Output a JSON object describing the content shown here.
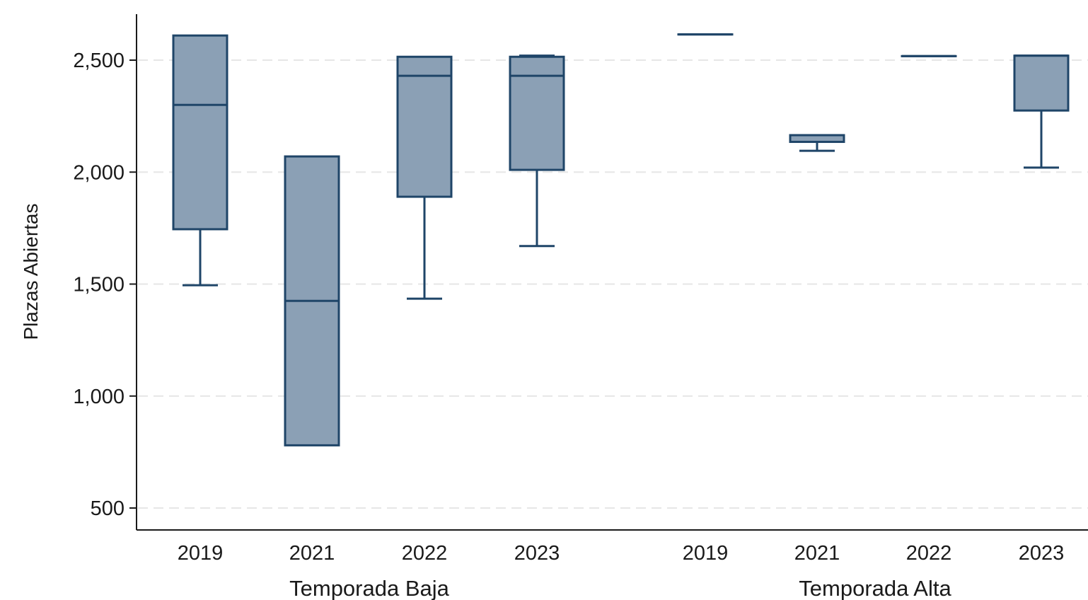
{
  "chart_data": {
    "type": "box",
    "ylabel": "Plazas Abiertas",
    "ylim": [
      420,
      2700
    ],
    "yticks": [
      500,
      1000,
      1500,
      2000,
      2500
    ],
    "ytick_labels": [
      "500",
      "1,000",
      "1,500",
      "2,000",
      "2,500"
    ],
    "grid": "horizontal dashed",
    "groups": [
      {
        "label": "Temporada Baja",
        "boxes": [
          {
            "category": "2019",
            "min": 1495,
            "q1": 1745,
            "median": 2300,
            "q3": 2610,
            "max": 2610
          },
          {
            "category": "2021",
            "min": 780,
            "q1": 780,
            "median": 1425,
            "q3": 2070,
            "max": 2070
          },
          {
            "category": "2022",
            "min": 1435,
            "q1": 1890,
            "median": 2430,
            "q3": 2515,
            "max": 2515
          },
          {
            "category": "2023",
            "min": 1670,
            "q1": 2010,
            "median": 2430,
            "q3": 2515,
            "max": 2520
          }
        ]
      },
      {
        "label": "Temporada Alta",
        "boxes": [
          {
            "category": "2019",
            "min": 2615,
            "q1": 2615,
            "median": 2615,
            "q3": 2615,
            "max": 2615
          },
          {
            "category": "2021",
            "min": 2095,
            "q1": 2135,
            "median": 2165,
            "q3": 2165,
            "max": 2165
          },
          {
            "category": "2022",
            "min": 2518,
            "q1": 2518,
            "median": 2518,
            "q3": 2518,
            "max": 2518
          },
          {
            "category": "2023",
            "min": 2020,
            "q1": 2275,
            "median": 2520,
            "q3": 2520,
            "max": 2520
          }
        ]
      }
    ],
    "colors": {
      "box_fill": "#8ba0b5",
      "box_stroke": "#1f4568",
      "grid": "#e6e6e6",
      "axis": "#1a1a1a"
    }
  }
}
